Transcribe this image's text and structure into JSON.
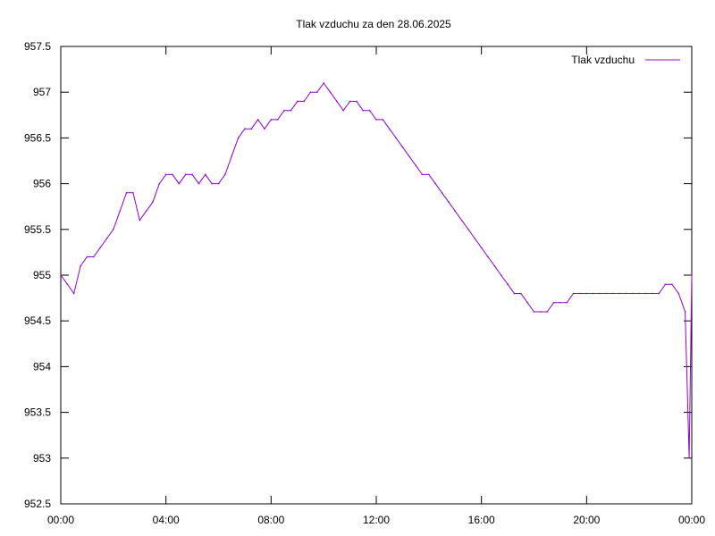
{
  "chart_data": {
    "type": "line",
    "title": "Tlak vzduchu za den 28.06.2025",
    "xlabel": "",
    "ylabel": "",
    "x_range_hours": [
      0,
      24
    ],
    "ylim": [
      952.5,
      957.5
    ],
    "x_ticks": [
      "00:00",
      "04:00",
      "08:00",
      "12:00",
      "16:00",
      "20:00",
      "00:00"
    ],
    "y_ticks": [
      "952.5",
      "953",
      "953.5",
      "954",
      "954.5",
      "955",
      "955.5",
      "956",
      "956.5",
      "957",
      "957.5"
    ],
    "grid": false,
    "legend_position": "top-right",
    "series": [
      {
        "name": "Tlak vzduchu",
        "color": "#9400d3",
        "x_hours": [
          0,
          0.25,
          0.5,
          0.75,
          1,
          1.25,
          1.5,
          1.75,
          2,
          2.25,
          2.5,
          2.75,
          3,
          3.25,
          3.5,
          3.75,
          4,
          4.25,
          4.5,
          4.75,
          5,
          5.25,
          5.5,
          5.75,
          6,
          6.25,
          6.5,
          6.75,
          7,
          7.25,
          7.5,
          7.75,
          8,
          8.25,
          8.5,
          8.75,
          9,
          9.25,
          9.5,
          9.75,
          10,
          10.25,
          10.5,
          10.75,
          11,
          11.25,
          11.5,
          11.75,
          12,
          12.25,
          12.5,
          12.75,
          13,
          13.25,
          13.5,
          13.75,
          14,
          14.25,
          14.5,
          14.75,
          15,
          15.25,
          15.5,
          15.75,
          16,
          16.25,
          16.5,
          16.75,
          17,
          17.25,
          17.5,
          17.75,
          18,
          18.25,
          18.5,
          18.75,
          19,
          19.25,
          19.5,
          19.75,
          20,
          20.25,
          20.5,
          20.75,
          21,
          21.25,
          21.5,
          21.75,
          22,
          22.25,
          22.5,
          22.75,
          23,
          23.25,
          23.5,
          23.75,
          23.9,
          24
        ],
        "values": [
          955.0,
          954.9,
          954.8,
          955.1,
          955.2,
          955.2,
          955.3,
          955.4,
          955.5,
          955.7,
          955.9,
          955.9,
          955.6,
          955.7,
          955.8,
          956.0,
          956.1,
          956.1,
          956.0,
          956.1,
          956.1,
          956.0,
          956.1,
          956.0,
          956.0,
          956.1,
          956.3,
          956.5,
          956.6,
          956.6,
          956.7,
          956.6,
          956.7,
          956.7,
          956.8,
          956.8,
          956.9,
          956.9,
          957.0,
          957.0,
          957.1,
          957.0,
          956.9,
          956.8,
          956.9,
          956.9,
          956.8,
          956.8,
          956.7,
          956.7,
          956.6,
          956.5,
          956.4,
          956.3,
          956.2,
          956.1,
          956.1,
          956.0,
          955.9,
          955.8,
          955.7,
          955.6,
          955.5,
          955.4,
          955.3,
          955.2,
          955.1,
          955.0,
          954.9,
          954.8,
          954.8,
          954.7,
          954.6,
          954.6,
          954.6,
          954.7,
          954.7,
          954.7,
          954.8,
          954.8,
          954.8,
          954.8,
          954.8,
          954.8,
          954.8,
          954.8,
          954.8,
          954.8,
          954.8,
          954.8,
          954.8,
          954.8,
          954.9,
          954.9,
          954.8,
          954.6,
          953.0,
          955.0
        ]
      }
    ]
  }
}
